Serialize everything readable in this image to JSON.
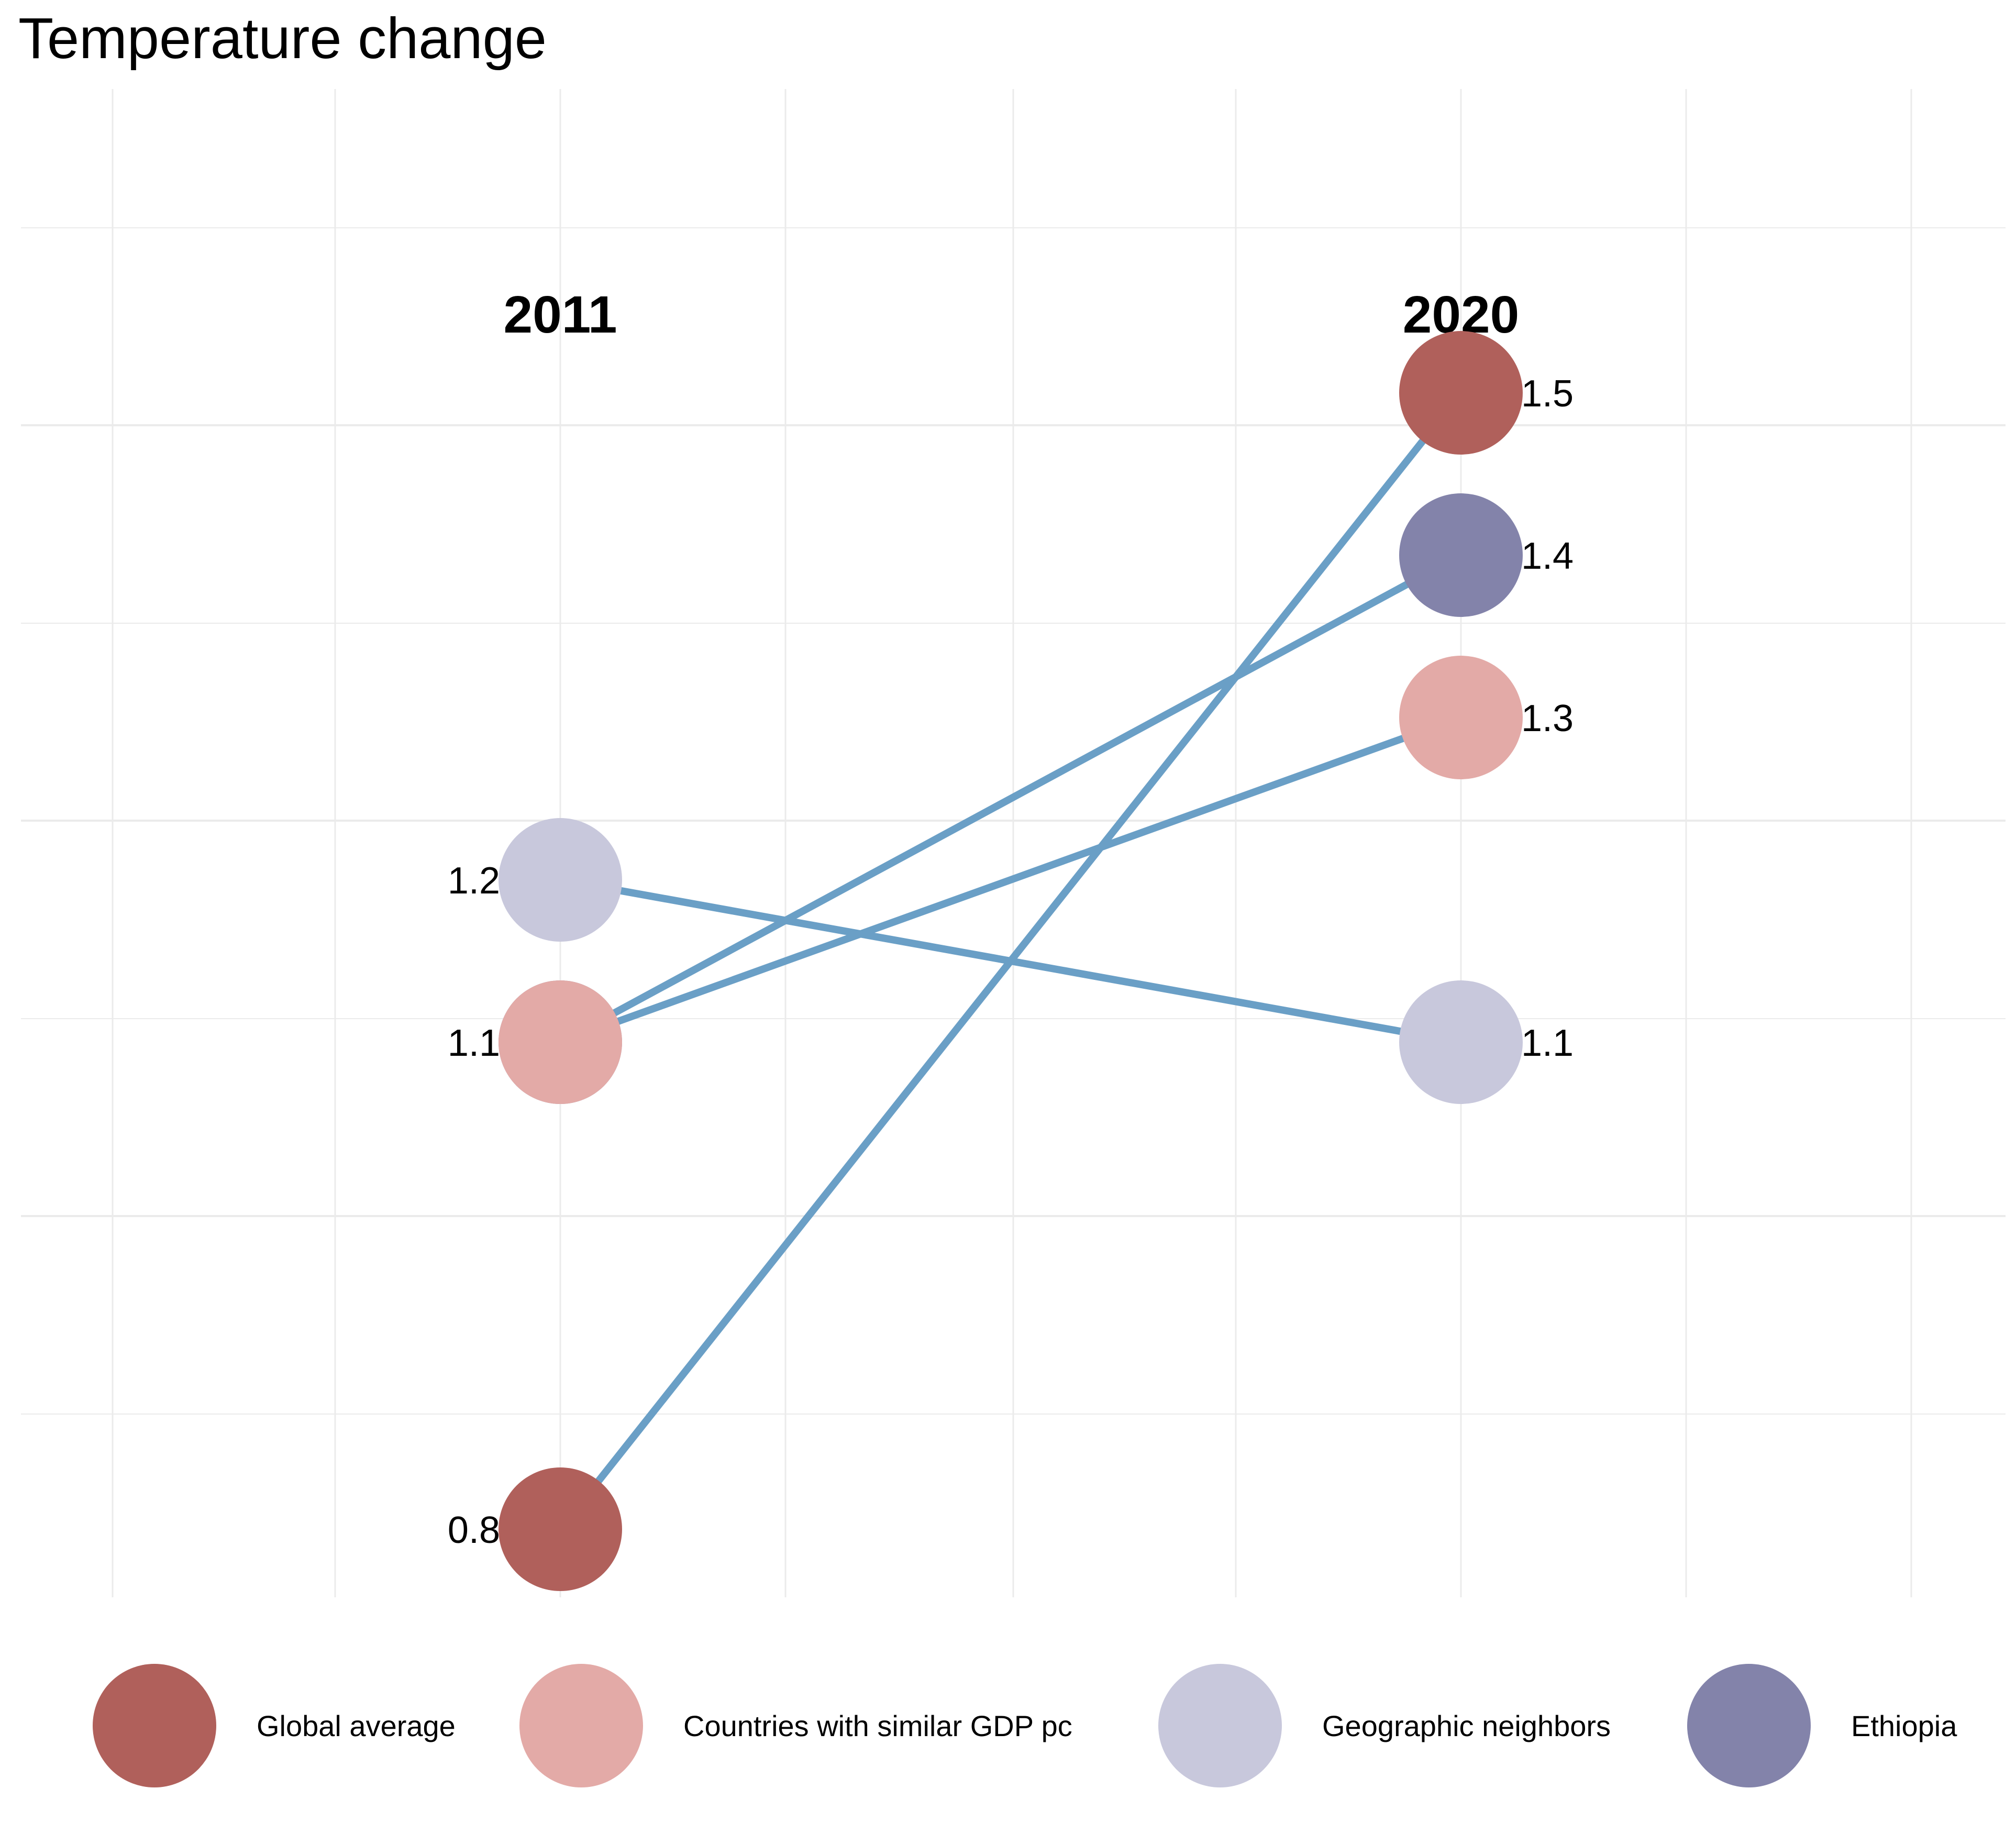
{
  "chart_data": {
    "type": "slope",
    "title": "Temperature change",
    "categories": [
      "2011",
      "2020"
    ],
    "grid": true,
    "legend_position": "bottom",
    "line_color": "#6a9fc6",
    "series": [
      {
        "name": "Global average",
        "color": "#b0605b",
        "values": [
          0.8,
          1.5
        ],
        "labels": [
          "0.8",
          "1.5"
        ]
      },
      {
        "name": "Countries with similar GDP pc",
        "color": "#e3aaa7",
        "values": [
          1.1,
          1.3
        ],
        "labels": [
          "1.1",
          "1.3"
        ]
      },
      {
        "name": "Geographic neighbors",
        "color": "#c8c8dc",
        "values": [
          1.2,
          1.1
        ],
        "labels": [
          "1.2",
          "1.1"
        ]
      },
      {
        "name": "Ethiopia",
        "color": "#8383aa",
        "values": [
          1.1,
          1.4
        ],
        "labels": [
          "1.1",
          "1.4"
        ]
      }
    ]
  }
}
